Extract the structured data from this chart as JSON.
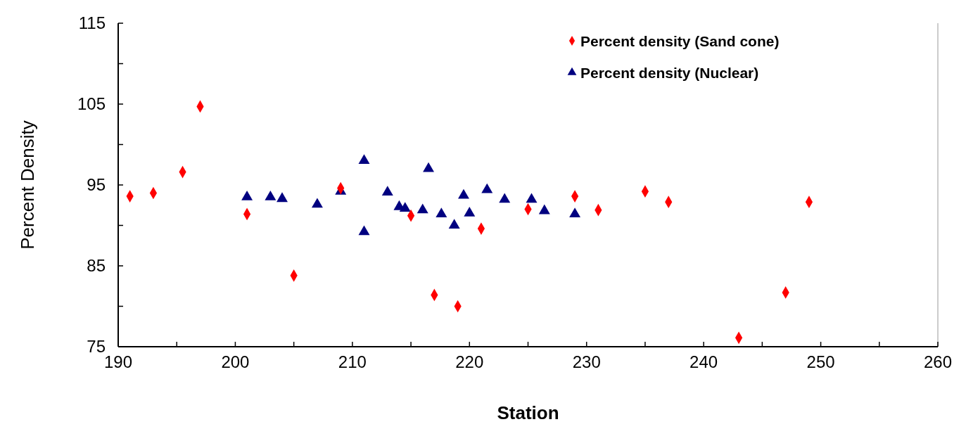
{
  "chart_data": {
    "type": "scatter",
    "xlabel": "Station",
    "ylabel": "Percent Density",
    "xlim": [
      190,
      260
    ],
    "xticks": [
      190,
      {
        "value": 195,
        "label": null
      },
      200,
      {
        "value": 205,
        "label": null
      },
      210,
      {
        "value": 215,
        "label": null
      },
      220,
      {
        "value": 225,
        "label": null
      },
      230,
      {
        "value": 235,
        "label": null
      },
      240,
      {
        "value": 245,
        "label": null
      },
      250,
      {
        "value": 255,
        "label": null
      },
      260
    ],
    "ylim": [
      75,
      115
    ],
    "yticks": [
      75,
      {
        "value": 80,
        "label": null
      },
      85,
      {
        "value": 90,
        "label": null
      },
      95,
      {
        "value": 100,
        "label": null
      },
      105,
      {
        "value": 110,
        "label": null
      },
      115
    ],
    "legend": "top right",
    "grid": false,
    "series": [
      {
        "name": "Percent density (Sand cone)",
        "color": "#ff0000",
        "marker": "diamond",
        "x": [
          191,
          193,
          195.5,
          197,
          201,
          205,
          209,
          215,
          217,
          219,
          221,
          225,
          229,
          231,
          235,
          237,
          243,
          247,
          249
        ],
        "values": [
          93.6,
          94,
          96.6,
          104.7,
          91.4,
          83.8,
          94.6,
          91.2,
          81.4,
          80,
          89.6,
          92,
          93.6,
          91.9,
          94.2,
          92.9,
          76.1,
          81.7,
          92.9
        ]
      },
      {
        "name": "Percent density (Nuclear)",
        "color": "#000080",
        "marker": "triangle",
        "x": [
          201,
          203,
          204,
          207,
          209,
          211,
          211,
          213,
          214,
          214.5,
          216,
          216.5,
          217.6,
          218.7,
          219.5,
          220,
          221.5,
          223,
          225.3,
          226.4,
          229
        ],
        "values": [
          93.5,
          93.5,
          93.3,
          92.6,
          94.2,
          98,
          89.2,
          94.1,
          92.3,
          92.1,
          91.9,
          97,
          91.4,
          90,
          93.7,
          91.5,
          94.4,
          93.2,
          93.2,
          91.8,
          91.4
        ]
      }
    ]
  }
}
